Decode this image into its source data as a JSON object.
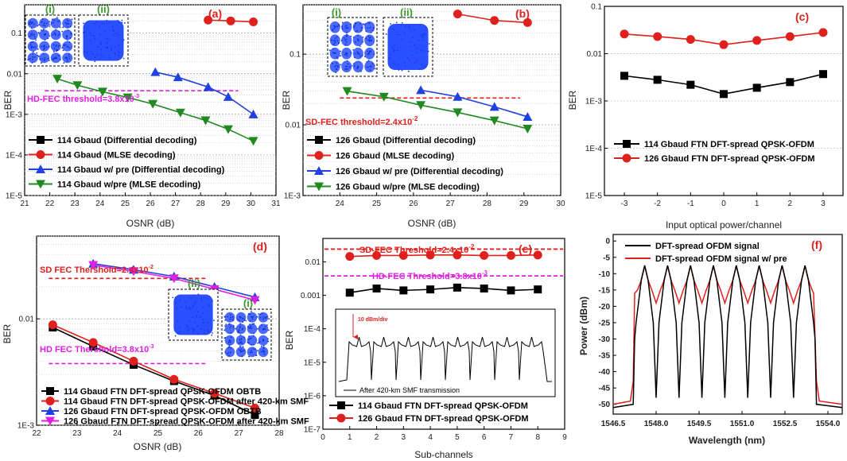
{
  "chart_data": [
    {
      "id": "a",
      "type": "line",
      "panel_label": "(a)",
      "xlabel": "OSNR (dB)",
      "ylabel": "BER",
      "yscale": "log",
      "xlim": [
        21,
        31
      ],
      "ylim": [
        1e-05,
        0.5
      ],
      "xticks": [
        21,
        22,
        23,
        24,
        25,
        26,
        27,
        28,
        29,
        30,
        31
      ],
      "yticks": [
        1e-05,
        0.0001,
        0.001,
        0.01,
        0.1
      ],
      "ytick_labels": [
        "1E-5",
        "1E-4",
        "1E-3",
        "0.01",
        "0.1"
      ],
      "threshold": {
        "label": "HD-FEC threshold=3.8x10",
        "exp": "-3",
        "value": 0.0038,
        "color": "#e020e0"
      },
      "insets": [
        {
          "label": "(i)",
          "kind": "16qam"
        },
        {
          "label": "(ii)",
          "kind": "blob"
        }
      ],
      "series": [
        {
          "name": "114 Gbaud (Differential decoding)",
          "color": "#000000",
          "marker": "square",
          "x": [],
          "y": []
        },
        {
          "name": "114 Gbaud  (MLSE decoding)",
          "color": "#e0201c",
          "marker": "circle",
          "x": [
            28.3,
            29.2,
            30.1
          ],
          "y": [
            0.21,
            0.2,
            0.19
          ]
        },
        {
          "name": "114 Gbaud w/ pre (Differential decoding)",
          "color": "#2040e0",
          "marker": "triangle-up",
          "x": [
            26.2,
            27.1,
            28.3,
            29.1,
            30.1
          ],
          "y": [
            0.011,
            0.0082,
            0.0047,
            0.0027,
            0.001
          ]
        },
        {
          "name": "114 Gbaud w/pre (MLSE decoding)",
          "color": "#208a20",
          "marker": "triangle-down",
          "x": [
            22.3,
            23.1,
            24.1,
            25.1,
            26.1,
            27.2,
            28.2,
            29.1,
            30.1
          ],
          "y": [
            0.0075,
            0.0052,
            0.0036,
            0.0026,
            0.0018,
            0.0011,
            0.00071,
            0.00043,
            0.00022
          ]
        }
      ]
    },
    {
      "id": "b",
      "type": "line",
      "panel_label": "(b)",
      "xlabel": "OSNR (dB)",
      "ylabel": "BER",
      "yscale": "log",
      "xlim": [
        23,
        30
      ],
      "ylim": [
        0.001,
        0.5
      ],
      "xticks": [
        24,
        25,
        26,
        27,
        28,
        29,
        30
      ],
      "yticks": [
        0.001,
        0.01,
        0.1
      ],
      "ytick_labels": [
        "1E-3",
        "0.01",
        "0.1"
      ],
      "threshold": {
        "label": "SD-FEC threshold=2.4x10",
        "exp": "-2",
        "value": 0.024,
        "color": "#e0201c"
      },
      "insets": [
        {
          "label": "(i)",
          "kind": "16qam"
        },
        {
          "label": "(ii)",
          "kind": "blob"
        }
      ],
      "series": [
        {
          "name": "126 Gbaud (Differential decoding)",
          "color": "#000000",
          "marker": "square",
          "x": [],
          "y": []
        },
        {
          "name": "126 Gbaud  (MLSE decoding)",
          "color": "#e0201c",
          "marker": "circle",
          "x": [
            27.2,
            28.2,
            29.1
          ],
          "y": [
            0.37,
            0.3,
            0.28
          ]
        },
        {
          "name": "126 Gbaud w/ pre (Differential decoding)",
          "color": "#2040e0",
          "marker": "triangle-up",
          "x": [
            26.2,
            27.2,
            28.2,
            29.1
          ],
          "y": [
            0.031,
            0.025,
            0.018,
            0.013
          ]
        },
        {
          "name": "126 Gbaud w/pre (MLSE decoding)",
          "color": "#208a20",
          "marker": "triangle-down",
          "x": [
            24.2,
            25.2,
            26.2,
            27.2,
            28.2,
            29.1
          ],
          "y": [
            0.03,
            0.025,
            0.019,
            0.015,
            0.0115,
            0.0088
          ]
        }
      ]
    },
    {
      "id": "c",
      "type": "line",
      "panel_label": "(c)",
      "xlabel": "Input optical power/channel",
      "ylabel": "BER",
      "yscale": "log",
      "xlim": [
        -3.6,
        3.6
      ],
      "ylim": [
        1e-05,
        0.1
      ],
      "xticks": [
        -3,
        -2,
        -1,
        0,
        1,
        2,
        3
      ],
      "yticks": [
        1e-05,
        0.0001,
        0.001,
        0.01,
        0.1
      ],
      "ytick_labels": [
        "1E-5",
        "1E-4",
        "1E-3",
        "0.01",
        "0.1"
      ],
      "series": [
        {
          "name": "114 Gbaud FTN DFT-spread QPSK-OFDM",
          "color": "#000000",
          "marker": "square",
          "x": [
            -3,
            -2,
            -1,
            0,
            1,
            2,
            3
          ],
          "y": [
            0.0034,
            0.0028,
            0.0022,
            0.0014,
            0.0019,
            0.0025,
            0.0037
          ]
        },
        {
          "name": "126 Gbaud FTN DFT-spread QPSK-OFDM",
          "color": "#e0201c",
          "marker": "circle",
          "x": [
            -3,
            -2,
            -1,
            0,
            1,
            2,
            3
          ],
          "y": [
            0.026,
            0.023,
            0.02,
            0.0155,
            0.019,
            0.023,
            0.028
          ]
        }
      ]
    },
    {
      "id": "d",
      "type": "line",
      "panel_label": "(d)",
      "xlabel": "OSNR (dB)",
      "ylabel": "BER",
      "yscale": "log",
      "xlim": [
        22,
        28
      ],
      "ylim": [
        0.001,
        0.06
      ],
      "xticks": [
        22,
        23,
        24,
        25,
        26,
        27,
        28
      ],
      "yticks": [
        0.001,
        0.01
      ],
      "ytick_labels": [
        "1E-3",
        "0.01"
      ],
      "thresholds": [
        {
          "label": "SD FEC Thershold=2.4x10",
          "exp": "-2",
          "value": 0.024,
          "color": "#e0201c"
        },
        {
          "label": "HD FEC Thershold=3.8x10",
          "exp": "-3",
          "value": 0.0038,
          "color": "#e020e0"
        }
      ],
      "insets": [
        {
          "label": "(ii)",
          "kind": "blob"
        },
        {
          "label": "(i)",
          "kind": "16qam"
        }
      ],
      "series": [
        {
          "name": "114 Gbaud FTN DFT-spread QPSK-OFDM OBTB",
          "color": "#000000",
          "marker": "square",
          "x": [
            22.4,
            23.4,
            24.4,
            25.4,
            26.4,
            27.4
          ],
          "y": [
            0.0083,
            0.0055,
            0.0037,
            0.0026,
            0.0019,
            0.00125
          ]
        },
        {
          "name": "114 Gbaud FTN DFT-spread QPSK-OFDM after 420-km SMF",
          "color": "#e0201c",
          "marker": "circle",
          "x": [
            22.4,
            23.4,
            24.4,
            25.4,
            26.4,
            27.4
          ],
          "y": [
            0.0088,
            0.006,
            0.004,
            0.0027,
            0.002,
            0.00145
          ]
        },
        {
          "name": "126 Gbaud FTN DFT-spread QPSK-OFDM OBTB",
          "color": "#2040e0",
          "marker": "triangle-up",
          "x": [
            23.4,
            24.4,
            25.4,
            26.4,
            27.4
          ],
          "y": [
            0.033,
            0.029,
            0.025,
            0.02,
            0.016
          ]
        },
        {
          "name": "126 Gbaud FTN DFT-spread QPSK-OFDM after 420-km SMF",
          "color": "#e020e0",
          "marker": "triangle-down",
          "x": [
            23.4,
            24.4,
            25.4,
            26.4,
            27.4
          ],
          "y": [
            0.032,
            0.028,
            0.024,
            0.019,
            0.015
          ]
        }
      ]
    },
    {
      "id": "e",
      "type": "line",
      "panel_label": "(e)",
      "xlabel": "Sub-channels",
      "ylabel": "BER",
      "yscale": "log",
      "xlim": [
        0,
        9
      ],
      "ylim": [
        1e-07,
        0.05
      ],
      "xticks": [
        0,
        1,
        2,
        3,
        4,
        5,
        6,
        7,
        8,
        9
      ],
      "yticks": [
        1e-07,
        1e-06,
        1e-05,
        0.0001,
        0.001,
        0.01
      ],
      "ytick_labels": [
        "1E-7",
        "1E-6",
        "1E-5",
        "1E-4",
        "0.001",
        "0.01"
      ],
      "thresholds": [
        {
          "label": "SD-FEC Threshold=2.4x10",
          "exp": "-2",
          "value": 0.024,
          "color": "#e0201c"
        },
        {
          "label": "HD-FEC Threshold=3.8x10",
          "exp": "-3",
          "value": 0.0038,
          "color": "#e020e0"
        }
      ],
      "inset_spectrum": {
        "scale_label": "10 dBm/div",
        "caption": "After 420-km SMF transmission"
      },
      "series": [
        {
          "name": "114 Gbaud FTN DFT-spread QPSK-OFDM",
          "color": "#000000",
          "marker": "square",
          "x": [
            1,
            2,
            3,
            4,
            5,
            6,
            7,
            8
          ],
          "y": [
            0.0012,
            0.0016,
            0.0014,
            0.0015,
            0.0017,
            0.0016,
            0.0014,
            0.0015
          ]
        },
        {
          "name": "126 Gbaud FTN DFT-spread QPSK-OFDM",
          "color": "#e0201c",
          "marker": "circle",
          "x": [
            1,
            2,
            3,
            4,
            5,
            6,
            7,
            8
          ],
          "y": [
            0.0145,
            0.0155,
            0.0155,
            0.016,
            0.016,
            0.0155,
            0.0155,
            0.016
          ]
        }
      ]
    },
    {
      "id": "f",
      "type": "line",
      "panel_label": "(f)",
      "xlabel": "Wavelength (nm)",
      "ylabel": "Power (dBm)",
      "xlim": [
        1546.5,
        1554.5
      ],
      "ylim": [
        -53,
        2
      ],
      "xticks": [
        1546.5,
        1548.0,
        1549.5,
        1551.0,
        1552.5,
        1554.0
      ],
      "xtick_labels": [
        "1546.5",
        "1548.0",
        "1549.5",
        "1551.0",
        "1552.5",
        "1554.0"
      ],
      "yticks": [
        -50,
        -45,
        -40,
        -35,
        -30,
        -25,
        -20,
        -15,
        -10,
        -5,
        0
      ],
      "subcarrier_peaks_nm": [
        1547.6,
        1548.4,
        1549.2,
        1550.0,
        1550.8,
        1551.6,
        1552.4,
        1553.2
      ],
      "series": [
        {
          "name": "DFT-spread OFDM signal",
          "color": "#000000",
          "peak_dbm": -7.5,
          "floor_dbm": -51
        },
        {
          "name": "DFT-spread OFDM signal w/ pre",
          "color": "#e0201c",
          "peak_dbm": -7.5,
          "shoulder_dbm": -16,
          "floor_dbm": -50
        }
      ]
    }
  ]
}
